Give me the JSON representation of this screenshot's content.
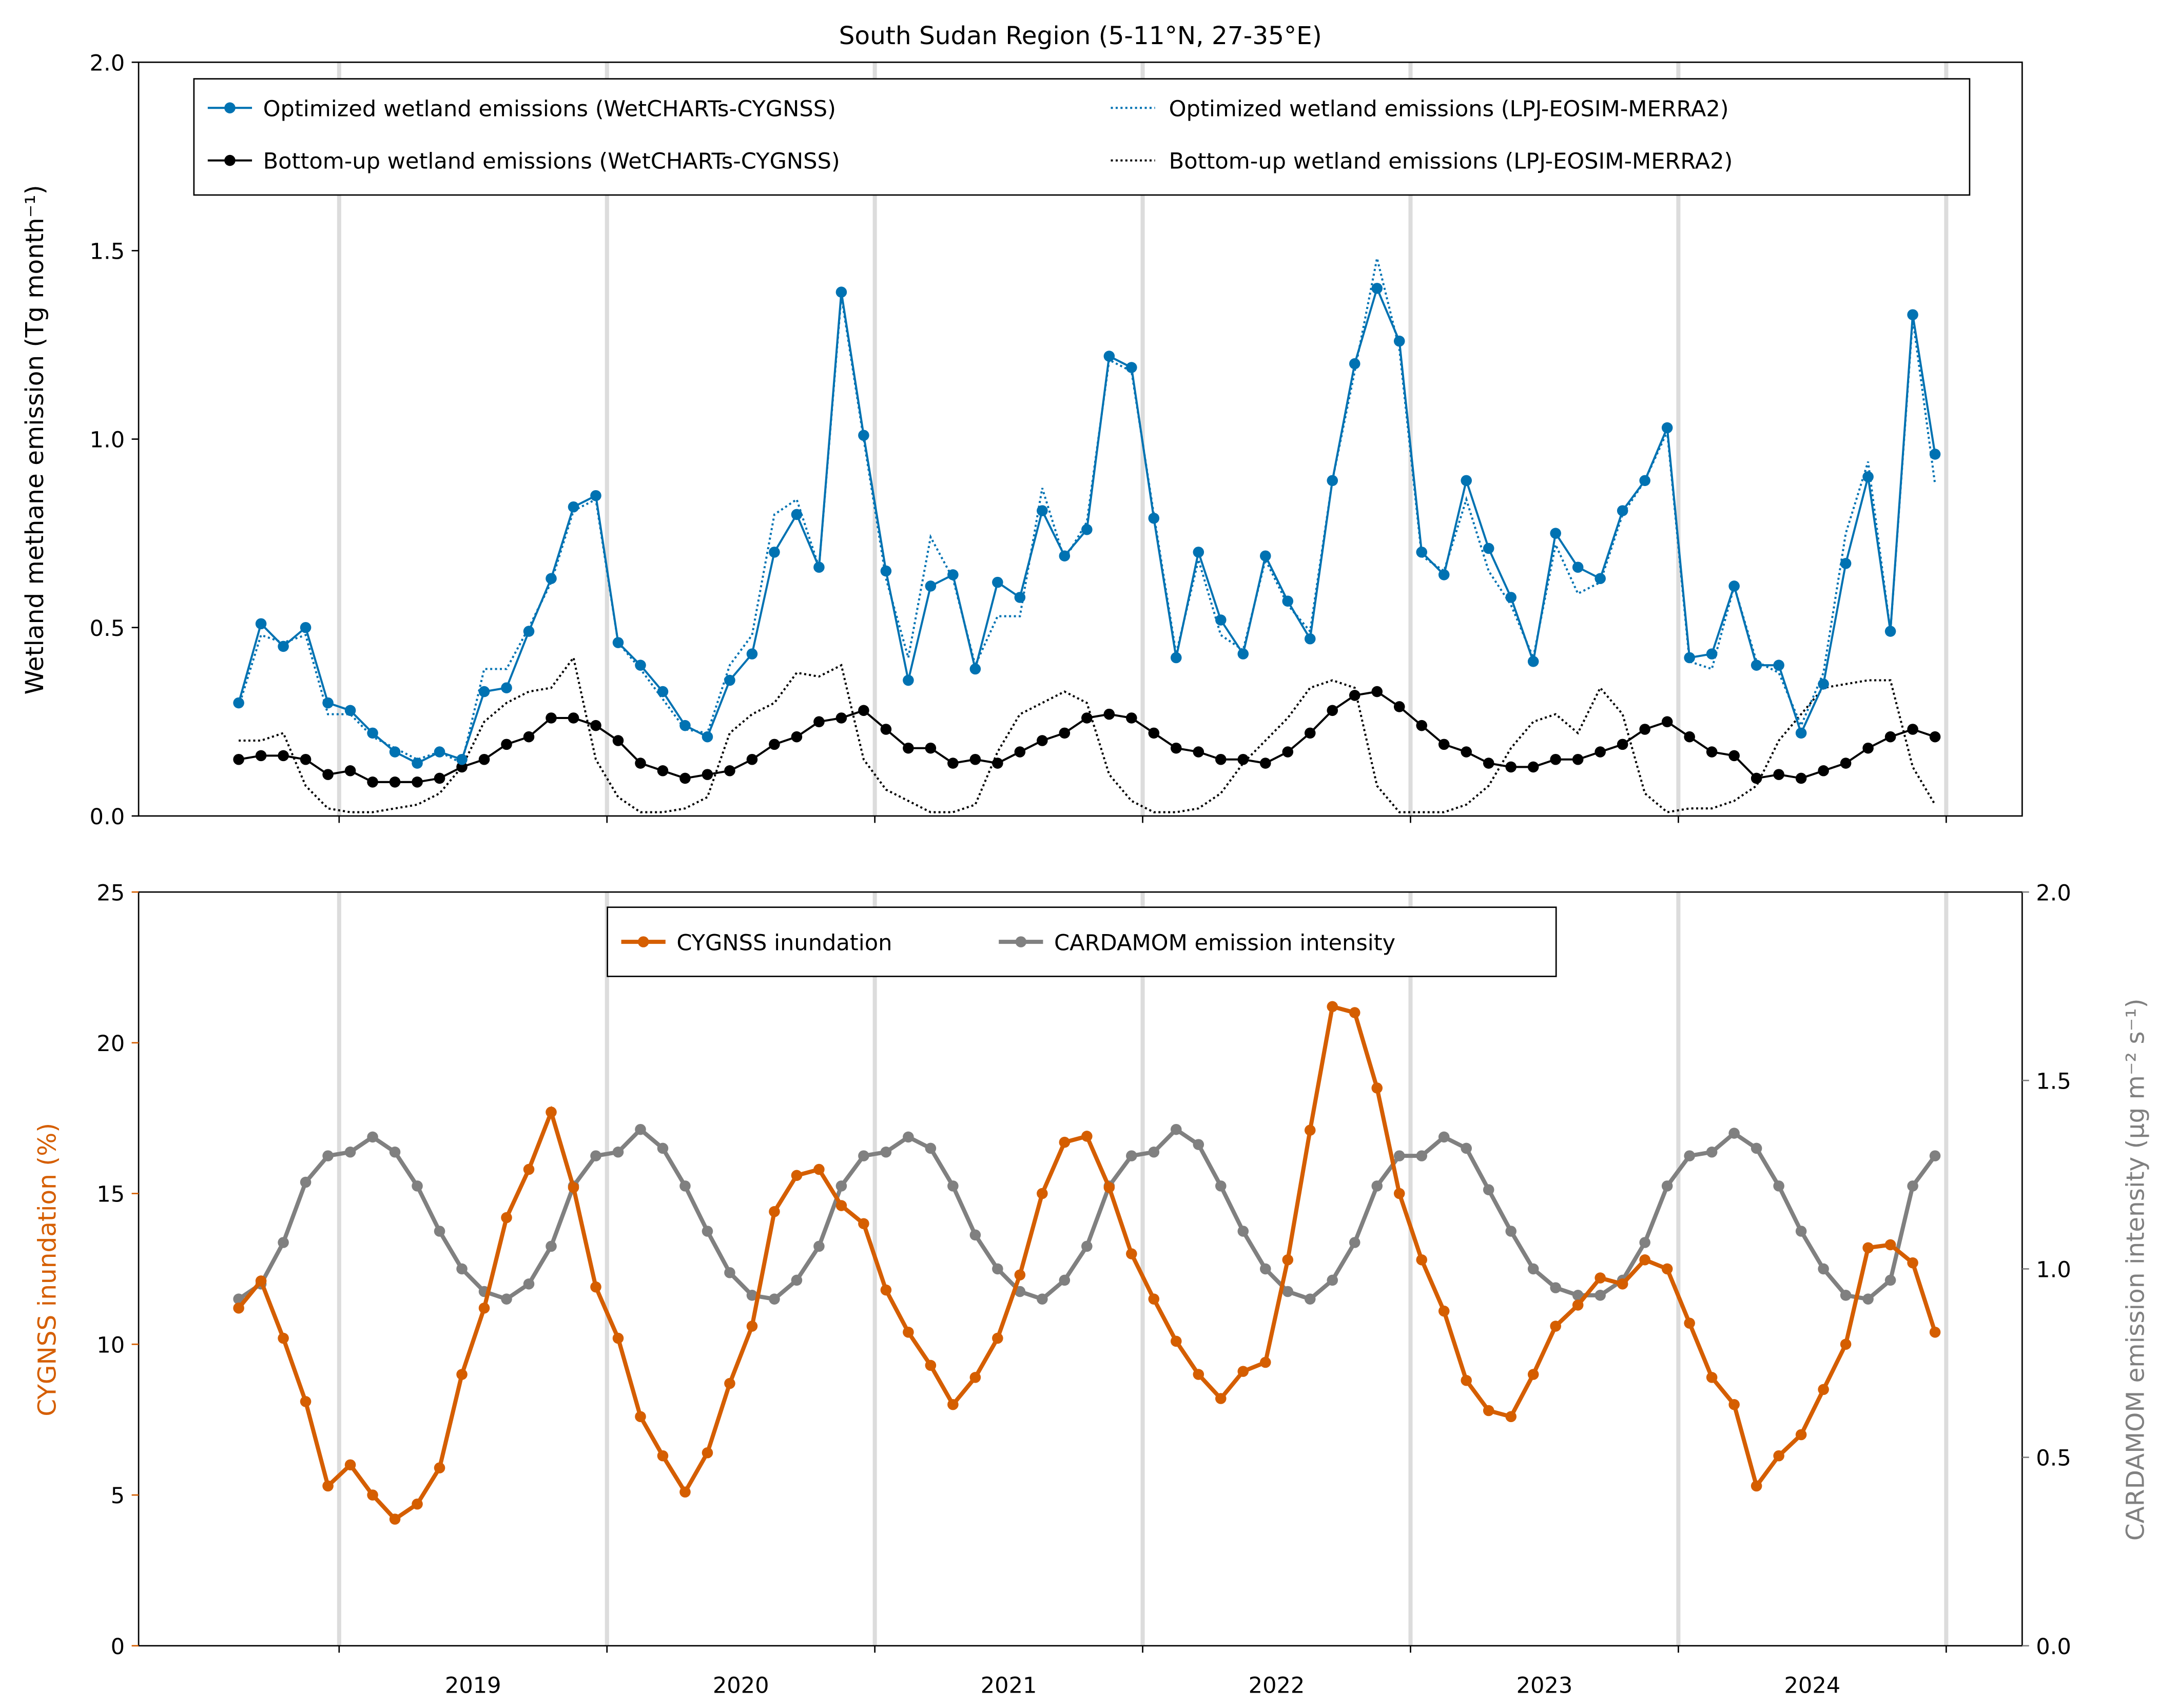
{
  "chart_data": [
    {
      "type": "line",
      "title": "South Sudan Region (5-11°N, 27-35°E)",
      "ylabel": "Wetland methane emission (Tg month⁻¹)",
      "ylim": [
        0,
        2.0
      ],
      "yticks": [
        "0.0",
        "0.5",
        "1.0",
        "1.5",
        "2.0"
      ],
      "xlim": [
        "2018-04",
        "2025-03"
      ],
      "xtick_labels": [
        "2019",
        "2020",
        "2021",
        "2022",
        "2023",
        "2024"
      ],
      "year_boundaries": [
        "2019-01",
        "2020-01",
        "2021-01",
        "2022-01",
        "2023-01",
        "2024-01",
        "2025-01"
      ],
      "grid": "vertical lines at year boundaries",
      "legend_placement": "top",
      "x": [
        "2018-08",
        "2018-09",
        "2018-10",
        "2018-11",
        "2018-12",
        "2019-01",
        "2019-02",
        "2019-03",
        "2019-04",
        "2019-05",
        "2019-06",
        "2019-07",
        "2019-08",
        "2019-09",
        "2019-10",
        "2019-11",
        "2019-12",
        "2020-01",
        "2020-02",
        "2020-03",
        "2020-04",
        "2020-05",
        "2020-06",
        "2020-07",
        "2020-08",
        "2020-09",
        "2020-10",
        "2020-11",
        "2020-12",
        "2021-01",
        "2021-02",
        "2021-03",
        "2021-04",
        "2021-05",
        "2021-06",
        "2021-07",
        "2021-08",
        "2021-09",
        "2021-10",
        "2021-11",
        "2021-12",
        "2022-01",
        "2022-02",
        "2022-03",
        "2022-04",
        "2022-05",
        "2022-06",
        "2022-07",
        "2022-08",
        "2022-09",
        "2022-10",
        "2022-11",
        "2022-12",
        "2023-01",
        "2023-02",
        "2023-03",
        "2023-04",
        "2023-05",
        "2023-06",
        "2023-07",
        "2023-08",
        "2023-09",
        "2023-10",
        "2023-11",
        "2023-12",
        "2024-01",
        "2024-02",
        "2024-03",
        "2024-04",
        "2024-05",
        "2024-06",
        "2024-07",
        "2024-08",
        "2024-09",
        "2024-10",
        "2024-11",
        "2024-12"
      ],
      "series": [
        {
          "name": "Optimized wetland emissions (WetCHARTs-CYGNSS)",
          "color": "#0072b2",
          "style": "solid-markers",
          "values": [
            0.3,
            0.51,
            0.45,
            0.5,
            0.3,
            0.28,
            0.22,
            0.17,
            0.14,
            0.17,
            0.15,
            0.33,
            0.34,
            0.49,
            0.63,
            0.82,
            0.85,
            0.46,
            0.4,
            0.33,
            0.24,
            0.21,
            0.36,
            0.43,
            0.7,
            0.8,
            0.66,
            1.39,
            1.01,
            0.65,
            0.36,
            0.61,
            0.64,
            0.39,
            0.62,
            0.58,
            0.81,
            0.69,
            0.76,
            1.22,
            1.19,
            0.79,
            0.42,
            0.7,
            0.52,
            0.43,
            0.69,
            0.57,
            0.47,
            0.89,
            1.2,
            1.4,
            1.26,
            0.7,
            0.64,
            0.89,
            0.71,
            0.58,
            0.41,
            0.75,
            0.66,
            0.63,
            0.81,
            0.89,
            1.03,
            0.42,
            0.43,
            0.61,
            0.4,
            0.4,
            0.22,
            0.35,
            0.67,
            0.9,
            0.49,
            1.33,
            0.96
          ]
        },
        {
          "name": "Bottom-up wetland emissions (WetCHARTs-CYGNSS)",
          "color": "#000000",
          "style": "solid-markers",
          "values": [
            0.15,
            0.16,
            0.16,
            0.15,
            0.11,
            0.12,
            0.09,
            0.09,
            0.09,
            0.1,
            0.13,
            0.15,
            0.19,
            0.21,
            0.26,
            0.26,
            0.24,
            0.2,
            0.14,
            0.12,
            0.1,
            0.11,
            0.12,
            0.15,
            0.19,
            0.21,
            0.25,
            0.26,
            0.28,
            0.23,
            0.18,
            0.18,
            0.14,
            0.15,
            0.14,
            0.17,
            0.2,
            0.22,
            0.26,
            0.27,
            0.26,
            0.22,
            0.18,
            0.17,
            0.15,
            0.15,
            0.14,
            0.17,
            0.22,
            0.28,
            0.32,
            0.33,
            0.29,
            0.24,
            0.19,
            0.17,
            0.14,
            0.13,
            0.13,
            0.15,
            0.15,
            0.17,
            0.19,
            0.23,
            0.25,
            0.21,
            0.17,
            0.16,
            0.1,
            0.11,
            0.1,
            0.12,
            0.14,
            0.18,
            0.21,
            0.23,
            0.21
          ]
        },
        {
          "name": "Optimized wetland emissions (LPJ-EOSIM-MERRA2)",
          "color": "#0072b2",
          "style": "dotted",
          "values": [
            0.29,
            0.48,
            0.46,
            0.48,
            0.27,
            0.27,
            0.21,
            0.18,
            0.15,
            0.17,
            0.14,
            0.39,
            0.39,
            0.5,
            0.62,
            0.81,
            0.84,
            0.46,
            0.39,
            0.31,
            0.23,
            0.22,
            0.4,
            0.48,
            0.8,
            0.84,
            0.66,
            1.38,
            1.0,
            0.63,
            0.42,
            0.74,
            0.63,
            0.4,
            0.53,
            0.53,
            0.87,
            0.68,
            0.78,
            1.21,
            1.18,
            0.8,
            0.43,
            0.68,
            0.48,
            0.44,
            0.68,
            0.56,
            0.49,
            0.89,
            1.18,
            1.48,
            1.24,
            0.69,
            0.65,
            0.84,
            0.65,
            0.56,
            0.42,
            0.72,
            0.59,
            0.62,
            0.8,
            0.89,
            1.02,
            0.41,
            0.39,
            0.61,
            0.41,
            0.38,
            0.24,
            0.38,
            0.75,
            0.94,
            0.49,
            1.32,
            0.88
          ]
        },
        {
          "name": "Bottom-up wetland emissions (LPJ-EOSIM-MERRA2)",
          "color": "#000000",
          "style": "dotted",
          "values": [
            0.2,
            0.2,
            0.22,
            0.08,
            0.02,
            0.01,
            0.01,
            0.02,
            0.03,
            0.06,
            0.13,
            0.25,
            0.3,
            0.33,
            0.34,
            0.42,
            0.15,
            0.05,
            0.01,
            0.01,
            0.02,
            0.05,
            0.22,
            0.27,
            0.3,
            0.38,
            0.37,
            0.4,
            0.15,
            0.07,
            0.04,
            0.01,
            0.01,
            0.03,
            0.17,
            0.27,
            0.3,
            0.33,
            0.3,
            0.11,
            0.04,
            0.01,
            0.01,
            0.02,
            0.06,
            0.14,
            0.2,
            0.26,
            0.34,
            0.36,
            0.34,
            0.08,
            0.01,
            0.01,
            0.01,
            0.03,
            0.08,
            0.18,
            0.25,
            0.27,
            0.22,
            0.34,
            0.27,
            0.06,
            0.01,
            0.02,
            0.02,
            0.04,
            0.08,
            0.2,
            0.27,
            0.34,
            0.35,
            0.36,
            0.36,
            0.13,
            0.03
          ]
        }
      ]
    },
    {
      "type": "line",
      "ylabel": "CYGNSS inundation (%)",
      "ylim": [
        0,
        25
      ],
      "yticks": [
        "0",
        "5",
        "10",
        "15",
        "20",
        "25"
      ],
      "ylabel_right": "CARDAMOM emission intensity (μg m⁻² s⁻¹)",
      "ylim_right": [
        0,
        2.0
      ],
      "yticks_right": [
        "0.0",
        "0.5",
        "1.0",
        "1.5",
        "2.0"
      ],
      "xtick_labels": [
        "2019",
        "2020",
        "2021",
        "2022",
        "2023",
        "2024"
      ],
      "legend_placement": "top-center",
      "series": [
        {
          "name": "CYGNSS inundation",
          "color": "#d55e00",
          "axis": "left",
          "values": [
            11.2,
            12.1,
            10.2,
            8.1,
            5.3,
            6.0,
            5.0,
            4.2,
            4.7,
            5.9,
            9.0,
            11.2,
            14.2,
            15.8,
            17.7,
            15.2,
            11.9,
            10.2,
            7.6,
            6.3,
            5.1,
            6.4,
            8.7,
            10.6,
            14.4,
            15.6,
            15.8,
            14.6,
            14.0,
            11.8,
            10.4,
            9.3,
            8.0,
            8.9,
            10.2,
            12.3,
            15.0,
            16.7,
            16.9,
            15.2,
            13.0,
            11.5,
            10.1,
            9.0,
            8.2,
            9.1,
            9.4,
            12.8,
            17.1,
            21.2,
            21.0,
            18.5,
            15.0,
            12.8,
            11.1,
            8.8,
            7.8,
            7.6,
            9.0,
            10.6,
            11.3,
            12.2,
            12.0,
            12.8,
            12.5,
            10.7,
            8.9,
            8.0,
            5.3,
            6.3,
            7.0,
            8.5,
            10.0,
            13.2,
            13.3,
            12.7,
            10.4
          ]
        },
        {
          "name": "CARDAMOM emission intensity",
          "color": "#808080",
          "axis": "right",
          "values": [
            0.92,
            0.96,
            1.07,
            1.23,
            1.3,
            1.31,
            1.35,
            1.31,
            1.22,
            1.1,
            1.0,
            0.94,
            0.92,
            0.96,
            1.06,
            1.22,
            1.3,
            1.31,
            1.37,
            1.32,
            1.22,
            1.1,
            0.99,
            0.93,
            0.92,
            0.97,
            1.06,
            1.22,
            1.3,
            1.31,
            1.35,
            1.32,
            1.22,
            1.09,
            1.0,
            0.94,
            0.92,
            0.97,
            1.06,
            1.22,
            1.3,
            1.31,
            1.37,
            1.33,
            1.22,
            1.1,
            1.0,
            0.94,
            0.92,
            0.97,
            1.07,
            1.22,
            1.3,
            1.3,
            1.35,
            1.32,
            1.21,
            1.1,
            1.0,
            0.95,
            0.93,
            0.93,
            0.97,
            1.07,
            1.22,
            1.3,
            1.31,
            1.36,
            1.32,
            1.22,
            1.1,
            1.0,
            0.93,
            0.92,
            0.97,
            1.22,
            1.3
          ]
        }
      ]
    }
  ]
}
